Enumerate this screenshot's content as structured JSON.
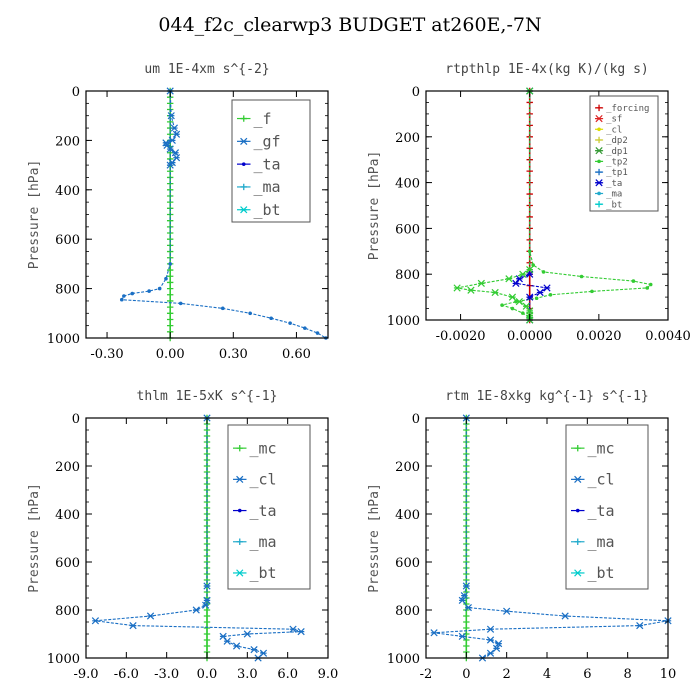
{
  "title": "044_f2c_clearwp3  BUDGET at260E,-7N",
  "chart_data": [
    {
      "type": "line",
      "title": "um   1E-4xm s^{-2}",
      "ylabel": "Pressure [hPa]",
      "xlim": [
        -0.4,
        0.75
      ],
      "ylim": [
        1000,
        0
      ],
      "xticks": [
        -0.3,
        0.0,
        0.3,
        0.6
      ],
      "xtick_labels": [
        "-0.30",
        "0.00",
        "0.30",
        "0.60"
      ],
      "yticks": [
        0,
        200,
        400,
        600,
        800,
        1000
      ],
      "legend": "top-right",
      "series": [
        {
          "name": "_f",
          "color": "#33cc33",
          "y": [
            0,
            25,
            50,
            75,
            100,
            125,
            150,
            175,
            200,
            225,
            250,
            275,
            300,
            325,
            350,
            375,
            400,
            425,
            450,
            475,
            500,
            525,
            550,
            575,
            600,
            625,
            650,
            675,
            700,
            725,
            750,
            775,
            800,
            825,
            850,
            875,
            900,
            925,
            950,
            975,
            1000
          ],
          "x": [
            0,
            0,
            0,
            0,
            0,
            0,
            0,
            0,
            0,
            0,
            0,
            0,
            0,
            0,
            0,
            0,
            0,
            0,
            0,
            0,
            0,
            0,
            0,
            0,
            0,
            0,
            0,
            0,
            0,
            0,
            0,
            0,
            0,
            0,
            0,
            0,
            0,
            0,
            0,
            0,
            0
          ]
        },
        {
          "name": "_gf",
          "color": "#1a6fc4",
          "y": [
            0,
            100,
            150,
            175,
            200,
            210,
            220,
            235,
            250,
            270,
            290,
            300
          ],
          "x": [
            0,
            0.005,
            0.02,
            0.03,
            0.01,
            -0.02,
            -0.015,
            0.0,
            0.025,
            0.03,
            0.01,
            0
          ]
        },
        {
          "name": "_ta",
          "color": "#0000cc",
          "y": [],
          "x": []
        },
        {
          "name": "_ma",
          "color": "#22aacc",
          "y": [],
          "x": []
        },
        {
          "name": "_bt",
          "color": "#00cccc",
          "y": [],
          "x": []
        },
        {
          "name": "",
          "color": "#1a6fc4",
          "y": [
            0,
            700,
            760,
            800,
            810,
            820,
            830,
            845,
            860,
            880,
            900,
            920,
            940,
            960,
            980,
            1000
          ],
          "x": [
            0,
            0,
            -0.02,
            -0.05,
            -0.1,
            -0.18,
            -0.22,
            -0.23,
            0.05,
            0.25,
            0.38,
            0.48,
            0.57,
            0.64,
            0.7,
            0.74
          ]
        }
      ]
    },
    {
      "type": "line",
      "title": "rtpthlp   1E-4x(kg K)/(kg s)",
      "ylabel": "Pressure [hPa]",
      "xlim": [
        -0.003,
        0.004
      ],
      "ylim": [
        1000,
        0
      ],
      "xticks": [
        -0.002,
        0.0,
        0.002,
        0.004
      ],
      "xtick_labels": [
        "-0.0020",
        "0.0000",
        "0.0020",
        "0.0040"
      ],
      "yticks": [
        0,
        200,
        400,
        600,
        800,
        1000
      ],
      "legend": "top-right",
      "series": [
        {
          "name": "_forcing",
          "color": "#cc0000",
          "y": [
            0,
            50,
            100,
            150,
            200,
            250,
            300,
            350,
            400,
            450,
            500,
            550,
            600,
            650,
            700,
            750,
            800,
            850,
            900,
            950,
            1000
          ],
          "x": [
            0,
            0,
            0,
            0,
            0,
            0,
            0,
            0,
            0,
            0,
            0,
            0,
            0,
            0,
            0,
            0,
            0,
            0,
            0,
            0,
            0
          ]
        },
        {
          "name": "_sf",
          "color": "#dd2222",
          "y": [],
          "x": []
        },
        {
          "name": "_cl",
          "color": "#dddd00",
          "y": [],
          "x": []
        },
        {
          "name": "_dp2",
          "color": "#cccc33",
          "y": [],
          "x": []
        },
        {
          "name": "_dp1",
          "color": "#339933",
          "y": [],
          "x": []
        },
        {
          "name": "_tp2",
          "color": "#33cc33",
          "y": [
            0,
            700,
            760,
            790,
            810,
            830,
            845,
            860,
            875,
            890,
            905,
            920,
            935,
            950,
            970,
            990,
            1000
          ],
          "x": [
            0,
            0,
            0.0001,
            0.0004,
            0.0015,
            0.003,
            0.0035,
            0.0034,
            0.0018,
            0.0006,
            0.0002,
            -0.0004,
            -0.0008,
            -0.0005,
            -0.0002,
            0,
            0
          ]
        },
        {
          "name": "_tp1",
          "color": "#1a6fc4",
          "y": [],
          "x": []
        },
        {
          "name": "_ta",
          "color": "#0000cc",
          "y": [
            0,
            800,
            820,
            840,
            860,
            880,
            900,
            1000
          ],
          "x": [
            0,
            0,
            -0.0003,
            -0.0004,
            0.0005,
            0.0003,
            0,
            0
          ]
        },
        {
          "name": "_ma",
          "color": "#22aacc",
          "y": [],
          "x": []
        },
        {
          "name": "_bt",
          "color": "#00cccc",
          "y": [],
          "x": []
        },
        {
          "name": "",
          "color": "#33cc33",
          "y": [
            0,
            780,
            800,
            820,
            840,
            860,
            870,
            880,
            900,
            920,
            940,
            960,
            980,
            1000
          ],
          "x": [
            0,
            0,
            -0.0002,
            -0.0006,
            -0.0014,
            -0.0021,
            -0.0017,
            -0.001,
            -0.0005,
            -0.0003,
            -0.0001,
            0,
            0,
            0
          ]
        }
      ]
    },
    {
      "type": "line",
      "title": "thlm   1E-5xK s^{-1}",
      "ylabel": "Pressure [hPa]",
      "xlim": [
        -9.0,
        9.0
      ],
      "ylim": [
        1000,
        0
      ],
      "xticks": [
        -9.0,
        -6.0,
        -3.0,
        0.0,
        3.0,
        6.0,
        9.0
      ],
      "xtick_labels": [
        "-9.0",
        "-6.0",
        "-3.0",
        "0.0",
        "3.0",
        "6.0",
        "9.0"
      ],
      "yticks": [
        0,
        200,
        400,
        600,
        800,
        1000
      ],
      "legend": "top-right",
      "series": [
        {
          "name": "_mc",
          "color": "#33cc33",
          "y": [
            0,
            25,
            50,
            75,
            100,
            125,
            150,
            175,
            200,
            225,
            250,
            275,
            300,
            325,
            350,
            375,
            400,
            425,
            450,
            475,
            500,
            525,
            550,
            575,
            600,
            625,
            650,
            675,
            700,
            725,
            750,
            775,
            800,
            825,
            850,
            875,
            900,
            925,
            950,
            975,
            1000
          ],
          "x": [
            0,
            0,
            0,
            0,
            0,
            0,
            0,
            0,
            0,
            0,
            0,
            0,
            0,
            0,
            0,
            0,
            0,
            0,
            0,
            0,
            0,
            0,
            0,
            0,
            0,
            0,
            0,
            0,
            0,
            0,
            0,
            0,
            0,
            0,
            0,
            0,
            0,
            0,
            0,
            0,
            0
          ]
        },
        {
          "name": "_cl",
          "color": "#1a6fc4",
          "y": [
            0,
            700,
            760,
            780,
            800,
            825,
            845,
            865,
            880,
            890,
            900,
            910,
            930,
            950,
            965,
            980,
            1000
          ],
          "x": [
            0,
            0,
            0,
            -0.1,
            -0.8,
            -4.2,
            -8.3,
            -5.5,
            6.4,
            7.0,
            3.0,
            1.2,
            1.5,
            2.2,
            3.5,
            4.2,
            3.8
          ]
        },
        {
          "name": "_ta",
          "color": "#0000cc",
          "y": [],
          "x": []
        },
        {
          "name": "_ma",
          "color": "#22aacc",
          "y": [],
          "x": []
        },
        {
          "name": "_bt",
          "color": "#00cccc",
          "y": [],
          "x": []
        }
      ]
    },
    {
      "type": "line",
      "title": "rtm   1E-8xkg kg^{-1} s^{-1}",
      "ylabel": "Pressure [hPa]",
      "xlim": [
        -2,
        10
      ],
      "ylim": [
        1000,
        0
      ],
      "xticks": [
        -2,
        0,
        2,
        4,
        6,
        8,
        10
      ],
      "xtick_labels": [
        "-2",
        "0",
        "2",
        "4",
        "6",
        "8",
        "10"
      ],
      "yticks": [
        0,
        200,
        400,
        600,
        800,
        1000
      ],
      "legend": "top-right",
      "series": [
        {
          "name": "_mc",
          "color": "#33cc33",
          "y": [
            0,
            25,
            50,
            75,
            100,
            125,
            150,
            175,
            200,
            225,
            250,
            275,
            300,
            325,
            350,
            375,
            400,
            425,
            450,
            475,
            500,
            525,
            550,
            575,
            600,
            625,
            650,
            675,
            700,
            725,
            750,
            775,
            800,
            825,
            850,
            875,
            900,
            925,
            950,
            975,
            1000
          ],
          "x": [
            0,
            0,
            0,
            0,
            0,
            0,
            0,
            0,
            0,
            0,
            0,
            0,
            0,
            0,
            0,
            0,
            0,
            0,
            0,
            0,
            0,
            0,
            0,
            0,
            0,
            0,
            0,
            0,
            0,
            0,
            0,
            0,
            0,
            0,
            0,
            0,
            0,
            0,
            0,
            0,
            0
          ]
        },
        {
          "name": "_cl",
          "color": "#1a6fc4",
          "y": [
            0,
            700,
            740,
            760,
            790,
            805,
            825,
            845,
            865,
            880,
            895,
            910,
            925,
            940,
            960,
            980,
            1000
          ],
          "x": [
            0,
            0,
            -0.1,
            -0.2,
            0.1,
            2.0,
            4.9,
            10.0,
            8.6,
            1.2,
            -1.6,
            -0.2,
            1.2,
            1.6,
            1.5,
            1.2,
            0.8
          ]
        },
        {
          "name": "_ta",
          "color": "#0000cc",
          "y": [],
          "x": []
        },
        {
          "name": "_ma",
          "color": "#22aacc",
          "y": [],
          "x": []
        },
        {
          "name": "_bt",
          "color": "#00cccc",
          "y": [],
          "x": []
        }
      ]
    }
  ]
}
